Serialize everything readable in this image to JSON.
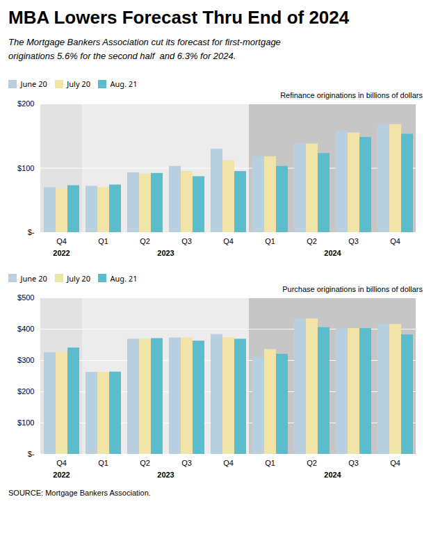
{
  "title": "MBA Lowers Forecast Thru End of 2024",
  "subtitle": "The Mortgage Bankers Association cut its forecast for first-mortgage\noriginations 5.6% for the second half  and 6.3% for 2024.",
  "source": "SOURCE: Mortgage Bankers Association.",
  "chart_data": [
    {
      "type": "bar",
      "title": "Refinance originations in billions of dollars",
      "categories": [
        "Q4",
        "Q1",
        "Q2",
        "Q3",
        "Q4",
        "Q1",
        "Q2",
        "Q3",
        "Q4"
      ],
      "category_groups": [
        {
          "label": "2022",
          "count": 1,
          "color": "#e2e2e2"
        },
        {
          "label": "2023",
          "count": 4,
          "color": "#ececec"
        },
        {
          "label": "2024",
          "count": 4,
          "color": "#c6c6c6"
        }
      ],
      "series": [
        {
          "name": "June 20",
          "color": "#b8cfe0",
          "values": [
            70,
            72,
            93,
            103,
            130,
            118,
            138,
            158,
            168
          ]
        },
        {
          "name": "July 20",
          "color": "#f0e4a8",
          "values": [
            68,
            70,
            91,
            95,
            112,
            118,
            138,
            155,
            168
          ]
        },
        {
          "name": "Aug. 21",
          "color": "#5bbccc",
          "values": [
            73,
            74,
            92,
            87,
            95,
            103,
            123,
            148,
            153
          ]
        }
      ],
      "ylim": [
        0,
        200
      ],
      "yticks": [
        {
          "value": 0,
          "label": "$-"
        },
        {
          "value": 100,
          "label": "$100"
        },
        {
          "value": 200,
          "label": "$200"
        }
      ],
      "grid": true,
      "legend": "upper left"
    },
    {
      "type": "bar",
      "title": "Purchase originations in billions of dollars",
      "categories": [
        "Q4",
        "Q1",
        "Q2",
        "Q3",
        "Q4",
        "Q1",
        "Q2",
        "Q3",
        "Q4"
      ],
      "category_groups": [
        {
          "label": "2022",
          "count": 1,
          "color": "#e2e2e2"
        },
        {
          "label": "2023",
          "count": 4,
          "color": "#ececec"
        },
        {
          "label": "2024",
          "count": 4,
          "color": "#c6c6c6"
        }
      ],
      "series": [
        {
          "name": "June 20",
          "color": "#b8cfe0",
          "values": [
            325,
            262,
            368,
            372,
            383,
            310,
            433,
            402,
            415
          ]
        },
        {
          "name": "July 20",
          "color": "#f0e4a8",
          "values": [
            325,
            262,
            368,
            372,
            373,
            335,
            433,
            402,
            415
          ]
        },
        {
          "name": "Aug. 21",
          "color": "#5bbccc",
          "values": [
            340,
            263,
            370,
            362,
            368,
            320,
            405,
            402,
            382
          ]
        }
      ],
      "ylim": [
        0,
        500
      ],
      "yticks": [
        {
          "value": 0,
          "label": "$-"
        },
        {
          "value": 100,
          "label": "$100"
        },
        {
          "value": 200,
          "label": "$200"
        },
        {
          "value": 300,
          "label": "$300"
        },
        {
          "value": 400,
          "label": "$400"
        },
        {
          "value": 500,
          "label": "$500"
        }
      ],
      "grid": true,
      "legend": "upper left"
    }
  ]
}
